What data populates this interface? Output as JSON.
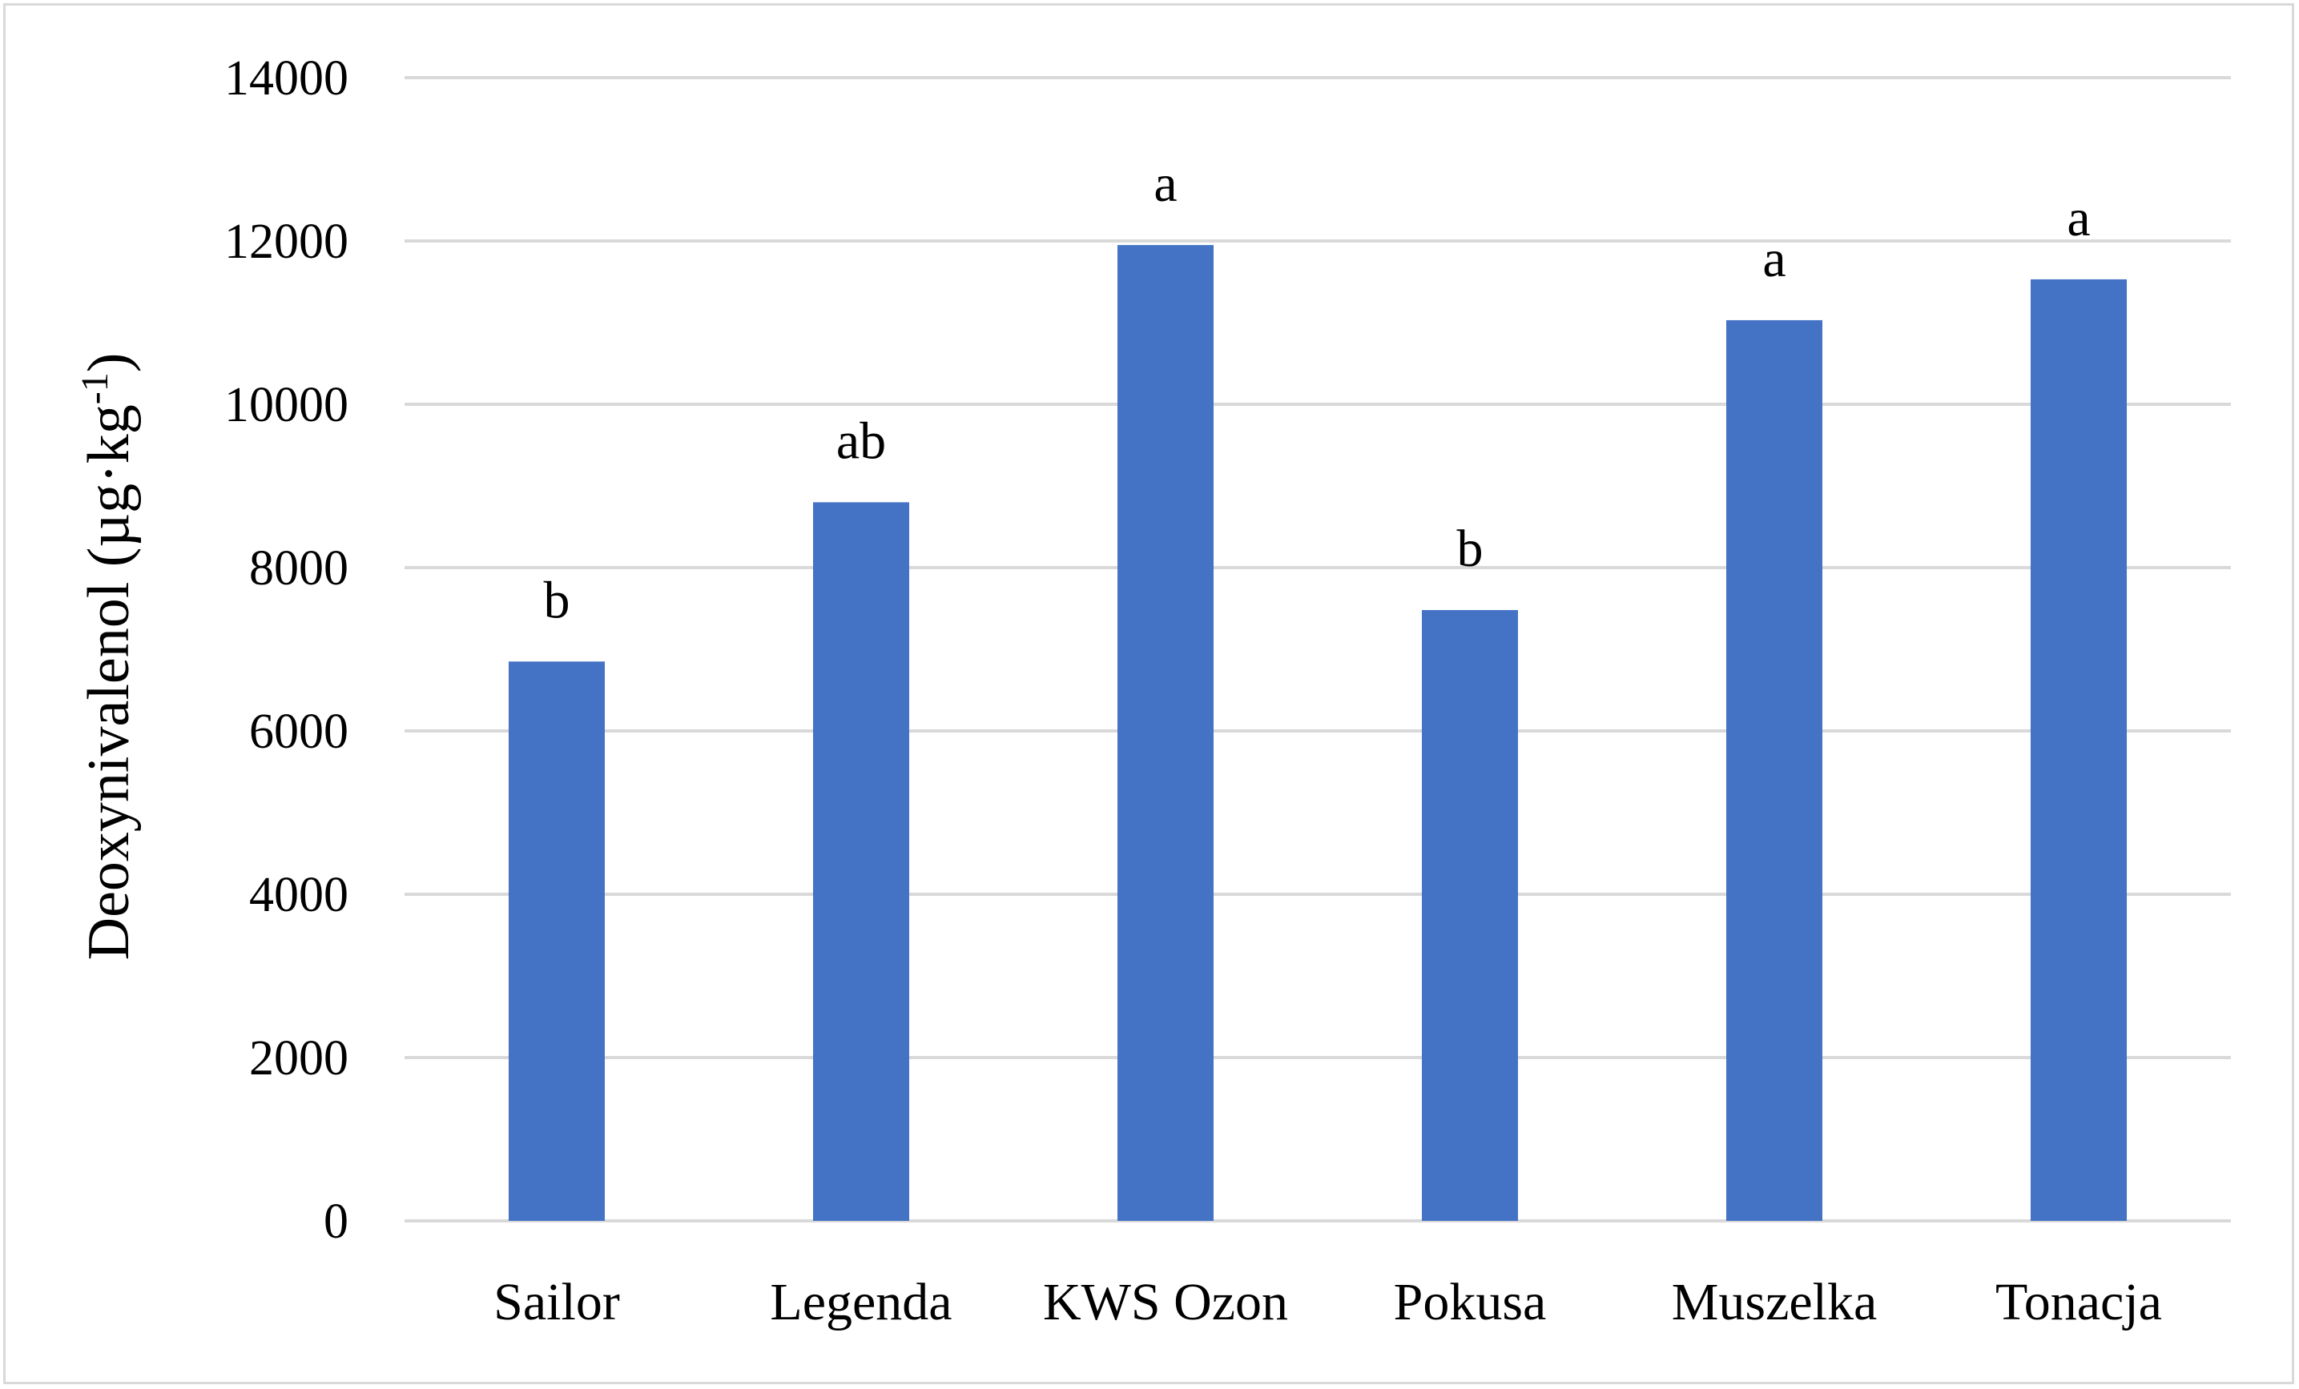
{
  "chart_data": {
    "type": "bar",
    "title": "",
    "xlabel": "",
    "ylabel": "Deoxynivalenol (µg·kg-1)",
    "ylabel_parts": {
      "main": "Deoxynivalenol (µg·kg",
      "superscript": "-1",
      "close": ")"
    },
    "categories": [
      "Sailor",
      "Legenda",
      "KWS Ozon",
      "Pokusa",
      "Muszelka",
      "Tonacja"
    ],
    "values": [
      6850,
      8800,
      11950,
      7480,
      11030,
      11530
    ],
    "data_labels": [
      "b",
      "ab",
      "a",
      "b",
      "a",
      "a"
    ],
    "ylim": [
      0,
      14000
    ],
    "yticks": [
      0,
      2000,
      4000,
      6000,
      8000,
      10000,
      12000,
      14000
    ],
    "ytick_labels": [
      "0",
      "2000",
      "4000",
      "6000",
      "8000",
      "10000",
      "12000",
      "14000"
    ],
    "grid": true,
    "legend": "none",
    "bar_color": "#4472c4",
    "grid_color": "#d9d9d9"
  }
}
